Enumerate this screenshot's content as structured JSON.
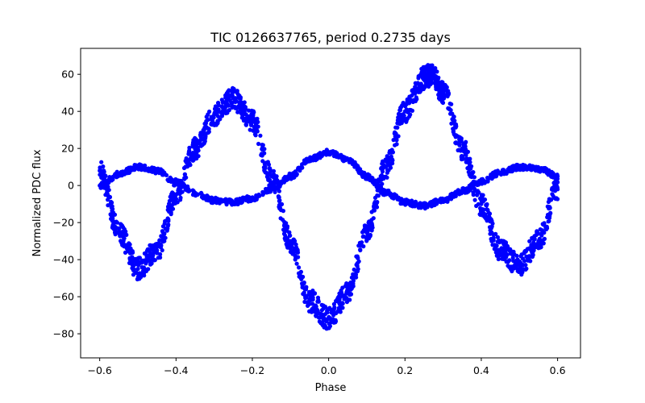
{
  "chart_data": {
    "type": "scatter",
    "title": "TIC 0126637765, period 0.2735 days",
    "xlabel": "Phase",
    "ylabel": "Normalized PDC flux",
    "xlim": [
      -0.65,
      0.66
    ],
    "ylim": [
      -93,
      74
    ],
    "xticks": [
      -0.6,
      -0.4,
      -0.2,
      0.0,
      0.2,
      0.4,
      0.6
    ],
    "xtick_labels": [
      "−0.6",
      "−0.4",
      "−0.2",
      "0.0",
      "0.2",
      "0.4",
      "0.6"
    ],
    "yticks": [
      -80,
      -60,
      -40,
      -20,
      0,
      20,
      40,
      60
    ],
    "ytick_labels": [
      "−80",
      "−60",
      "−40",
      "−20",
      "0",
      "20",
      "40",
      "60"
    ],
    "grid": false,
    "legend": "none",
    "marker_color": "#0000ff",
    "series": [
      {
        "x": [
          -0.6,
          -0.55,
          -0.5,
          -0.45,
          -0.4,
          -0.35,
          -0.3,
          -0.25,
          -0.2,
          -0.15,
          -0.1,
          -0.05,
          0.0,
          0.05,
          0.1,
          0.15,
          0.2,
          0.25,
          0.27,
          0.3,
          0.35,
          0.4,
          0.45,
          0.5,
          0.55,
          0.6
        ],
        "y": [
          8,
          -25,
          -45,
          -35,
          -5,
          20,
          38,
          47,
          35,
          5,
          -30,
          -62,
          -72,
          -58,
          -25,
          10,
          40,
          58,
          60,
          50,
          20,
          -10,
          -35,
          -43,
          -30,
          -2
        ]
      },
      {
        "x": [
          -0.6,
          -0.55,
          -0.5,
          -0.45,
          -0.4,
          -0.35,
          -0.3,
          -0.25,
          -0.2,
          -0.15,
          -0.1,
          -0.05,
          0.0,
          0.05,
          0.1,
          0.15,
          0.2,
          0.25,
          0.3,
          0.35,
          0.4,
          0.45,
          0.5,
          0.55,
          0.6
        ],
        "y": [
          0,
          6,
          10,
          8,
          2,
          -4,
          -8,
          -9,
          -7,
          -2,
          5,
          14,
          18,
          14,
          5,
          -4,
          -9,
          -11,
          -8,
          -3,
          2,
          7,
          10,
          9,
          5
        ]
      }
    ]
  }
}
